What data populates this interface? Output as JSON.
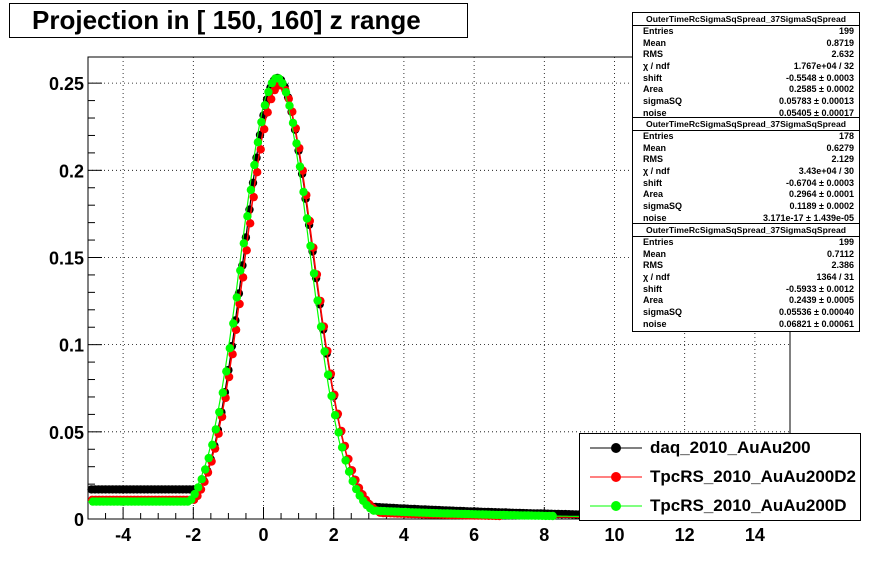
{
  "title": "Projection in [ 150, 160] z range",
  "stat_boxes": [
    {
      "header": "OuterTimeRcSigmaSqSpread_37SigmaSqSpread",
      "rows": [
        {
          "k": "Entries",
          "v": "199"
        },
        {
          "k": "Mean",
          "v": "0.8719"
        },
        {
          "k": "RMS",
          "v": "2.632"
        },
        {
          "k": "χ  / ndf",
          "v": "1.767e+04 / 32"
        },
        {
          "k": "shift",
          "v": "-0.5548 ± 0.0003"
        },
        {
          "k": "Area",
          "v": "0.2585 ± 0.0002"
        },
        {
          "k": "sigmaSQ",
          "v": "0.05783 ± 0.00013"
        },
        {
          "k": "noise",
          "v": "0.05405 ± 0.00017"
        }
      ]
    },
    {
      "header": "OuterTimeRcSigmaSqSpread_37SigmaSqSpread",
      "rows": [
        {
          "k": "Entries",
          "v": "178"
        },
        {
          "k": "Mean",
          "v": "0.6279"
        },
        {
          "k": "RMS",
          "v": "2.129"
        },
        {
          "k": "χ  / ndf",
          "v": "3.43e+04 / 30"
        },
        {
          "k": "shift",
          "v": "-0.6704 ± 0.0003"
        },
        {
          "k": "Area",
          "v": "0.2964 ± 0.0001"
        },
        {
          "k": "sigmaSQ",
          "v": "0.1189 ± 0.0002"
        },
        {
          "k": "noise",
          "v": "3.171e-17 ± 1.439e-05"
        }
      ]
    },
    {
      "header": "OuterTimeRcSigmaSqSpread_37SigmaSqSpread",
      "rows": [
        {
          "k": "Entries",
          "v": "199"
        },
        {
          "k": "Mean",
          "v": "0.7112"
        },
        {
          "k": "RMS",
          "v": "2.386"
        },
        {
          "k": "χ  / ndf",
          "v": "1364 / 31"
        },
        {
          "k": "shift",
          "v": "-0.5933 ± 0.0012"
        },
        {
          "k": "Area",
          "v": "0.2439 ± 0.0005"
        },
        {
          "k": "sigmaSQ",
          "v": "0.05536 ± 0.00040"
        },
        {
          "k": "noise",
          "v": "0.06821 ± 0.00061"
        }
      ]
    }
  ],
  "legend": [
    {
      "label": "daq_2010_AuAu200",
      "color": "#000000"
    },
    {
      "label": "TpcRS_2010_AuAu200D2",
      "color": "#ff0000"
    },
    {
      "label": "TpcRS_2010_AuAu200D",
      "color": "#00ff00"
    }
  ],
  "chart_data": {
    "type": "scatter",
    "title": "Projection in [ 150, 160] z range",
    "xlim": [
      -5,
      15
    ],
    "ylim": [
      0,
      0.265
    ],
    "xticks": [
      -4,
      -2,
      0,
      2,
      4,
      6,
      8,
      10,
      12,
      14
    ],
    "yticks": [
      0,
      0.05,
      0.1,
      0.15,
      0.2,
      0.25
    ],
    "xtick_labels": [
      "-4",
      "-2",
      "0",
      "2",
      "4",
      "6",
      "8",
      "10",
      "12",
      "14"
    ],
    "ytick_labels": [
      "0",
      "0.05",
      "0.1",
      "0.15",
      "0.2",
      "0.25"
    ],
    "grid": true,
    "legend_position": "bottom-right",
    "series": [
      {
        "name": "daq_2010_AuAu200",
        "color": "#000000",
        "peak": 0.253,
        "peak_x": 0.4,
        "sigma_left": 0.95,
        "sigma_right": 1.0,
        "tail_left": 0.017,
        "tail_right": 0.006,
        "tail_decay": 6.0,
        "x_range": [
          -5,
          14
        ]
      },
      {
        "name": "TpcRS_2010_AuAu200D2",
        "color": "#ff0000",
        "peak": 0.249,
        "peak_x": 0.45,
        "sigma_left": 0.97,
        "sigma_right": 0.98,
        "tail_left": 0.011,
        "tail_right": 0.003,
        "tail_decay": 5.0,
        "x_range": [
          -5,
          10
        ]
      },
      {
        "name": "TpcRS_2010_AuAu200D",
        "color": "#00ff00",
        "peak": 0.253,
        "peak_x": 0.35,
        "sigma_left": 0.98,
        "sigma_right": 0.97,
        "tail_left": 0.01,
        "tail_right": 0.004,
        "tail_decay": 5.0,
        "x_range": [
          -5,
          10
        ]
      }
    ]
  }
}
